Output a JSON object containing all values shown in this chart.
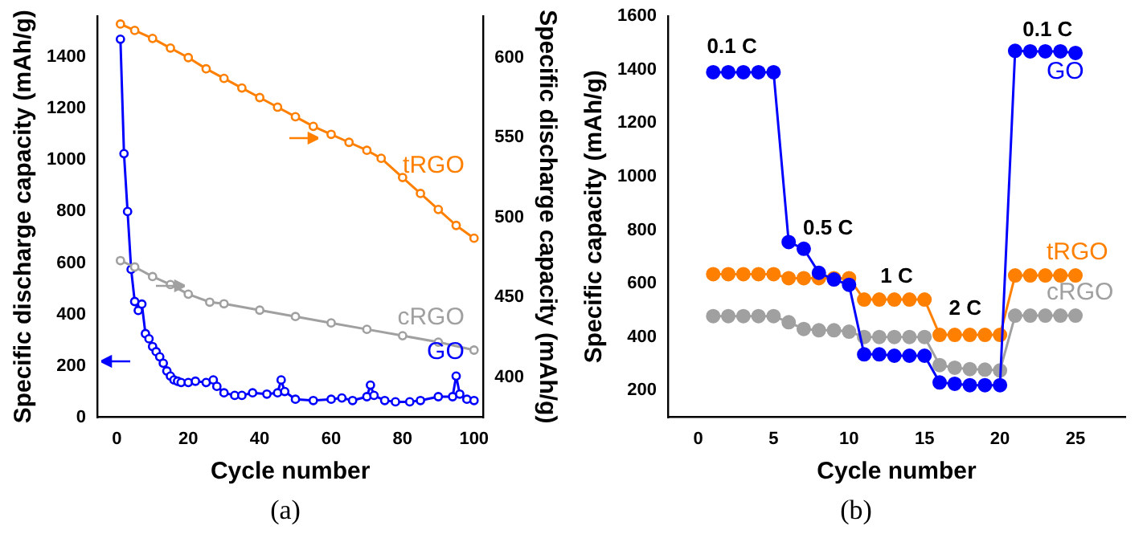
{
  "chart_data": [
    {
      "type": "line",
      "xlabel": "Cycle number",
      "ylabel": "Specific discharge capacity (mAh/g)",
      "y2label": "Specific discharge capacity (mAh/g)",
      "annotations": [
        "(a)"
      ],
      "xlim": [
        -5.5,
        102.6
      ],
      "xticks": [
        0,
        20,
        40,
        60,
        80,
        100
      ],
      "ylim": [
        0,
        1560
      ],
      "yticks": [
        0,
        200,
        400,
        600,
        800,
        1000,
        1200,
        1400
      ],
      "y2lim": [
        375,
        626
      ],
      "y2ticks": [
        400,
        450,
        500,
        550,
        600
      ],
      "marker": "circle",
      "legend": false,
      "grid": false,
      "series": [
        {
          "name": "tRGO",
          "color": "#ff8000",
          "axis": "y2",
          "x": [
            1,
            5,
            10,
            15,
            20,
            25,
            30,
            35,
            40,
            45,
            50,
            55,
            60,
            65,
            70,
            74,
            80,
            85,
            90,
            95,
            100
          ],
          "values": [
            621,
            617,
            612,
            606,
            600,
            593,
            587,
            581,
            575,
            569,
            563,
            557,
            552,
            547,
            542,
            537,
            525,
            515,
            505,
            495,
            487
          ]
        },
        {
          "name": "cRGO",
          "color": "#a0a0a0",
          "axis": "y2",
          "x": [
            1,
            5,
            10,
            15,
            20,
            26,
            30,
            40,
            50,
            60,
            70,
            80,
            90,
            100
          ],
          "values": [
            473,
            469,
            463,
            458,
            452,
            447,
            446,
            442,
            438,
            434,
            430,
            426,
            422,
            417
          ]
        },
        {
          "name": "GO",
          "color": "#0000ff",
          "x": [
            1,
            2,
            3,
            4,
            5,
            6,
            7,
            8,
            9,
            10,
            11,
            12,
            13,
            14,
            15,
            16,
            17,
            18,
            20,
            22,
            25,
            27,
            28,
            30,
            33,
            35,
            38,
            42,
            45,
            46,
            47,
            50,
            55,
            60,
            63,
            66,
            70,
            71,
            72,
            75,
            78,
            82,
            85,
            90,
            94,
            95,
            96,
            98,
            100
          ],
          "values": [
            1470,
            1025,
            800,
            575,
            450,
            415,
            440,
            325,
            305,
            275,
            255,
            235,
            210,
            180,
            160,
            145,
            140,
            135,
            135,
            140,
            135,
            145,
            120,
            95,
            85,
            85,
            95,
            90,
            95,
            145,
            100,
            70,
            65,
            70,
            75,
            65,
            80,
            125,
            85,
            65,
            60,
            60,
            65,
            80,
            80,
            160,
            90,
            70,
            65
          ]
        }
      ]
    },
    {
      "type": "line",
      "xlabel": "Cycle number",
      "ylabel": "Specific capacity (mAh/g)",
      "annotations": [
        "(b)",
        "0.1 C",
        "0.5 C",
        "1 C",
        "2 C",
        "0.1 C"
      ],
      "xlim": [
        -2,
        28.3
      ],
      "xticks": [
        0,
        5,
        10,
        15,
        20,
        25
      ],
      "ylim": [
        100,
        1600
      ],
      "yticks": [
        200,
        400,
        600,
        800,
        1000,
        1200,
        1400,
        1600
      ],
      "marker": "circle",
      "legend": false,
      "grid": false,
      "series": [
        {
          "name": "GO",
          "color": "#0000ff",
          "x": [
            1,
            2,
            3,
            4,
            5,
            6,
            7,
            8,
            9,
            10,
            11,
            12,
            13,
            14,
            15,
            16,
            17,
            18,
            19,
            20,
            21,
            22,
            23,
            24,
            25
          ],
          "values": [
            1390,
            1390,
            1390,
            1390,
            1390,
            755,
            730,
            640,
            615,
            595,
            335,
            335,
            330,
            330,
            330,
            230,
            225,
            220,
            220,
            220,
            1470,
            1468,
            1468,
            1468,
            1462
          ]
        },
        {
          "name": "tRGO",
          "color": "#ff8000",
          "x": [
            1,
            2,
            3,
            4,
            5,
            6,
            7,
            8,
            9,
            10,
            11,
            12,
            13,
            14,
            15,
            16,
            17,
            18,
            19,
            20,
            21,
            22,
            23,
            24,
            25
          ],
          "values": [
            635,
            635,
            635,
            635,
            635,
            620,
            620,
            620,
            620,
            620,
            540,
            540,
            540,
            540,
            540,
            408,
            408,
            408,
            408,
            408,
            630,
            630,
            630,
            630,
            630
          ]
        },
        {
          "name": "cRGO",
          "color": "#a0a0a0",
          "x": [
            1,
            2,
            3,
            4,
            5,
            6,
            7,
            8,
            9,
            10,
            11,
            12,
            13,
            14,
            15,
            16,
            17,
            18,
            19,
            20,
            21,
            22,
            23,
            24,
            25
          ],
          "values": [
            478,
            478,
            478,
            478,
            478,
            455,
            430,
            425,
            425,
            420,
            400,
            400,
            400,
            400,
            400,
            295,
            285,
            280,
            278,
            275,
            480,
            480,
            480,
            480,
            480
          ]
        }
      ]
    }
  ]
}
